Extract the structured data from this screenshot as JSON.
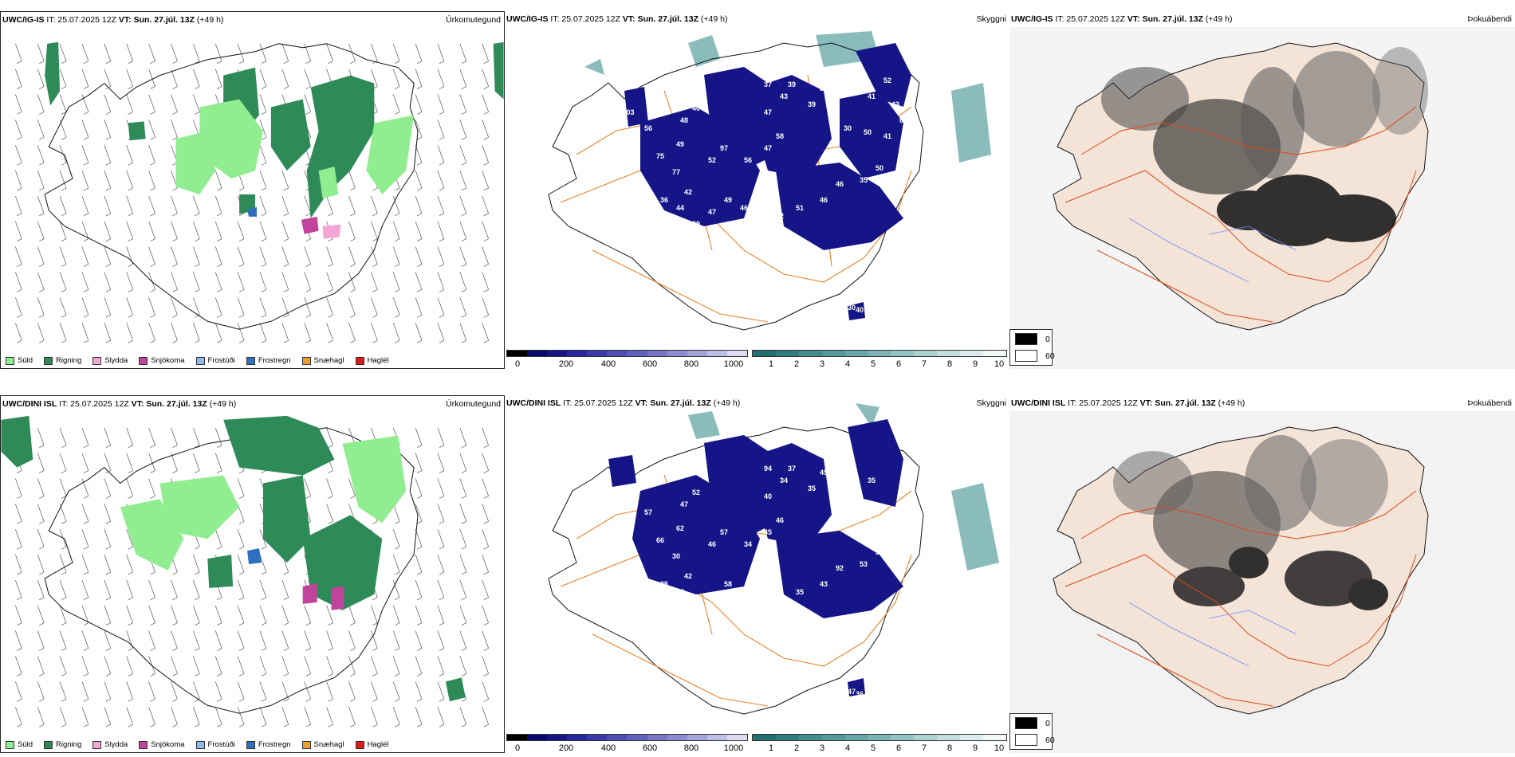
{
  "panels": [
    {
      "row": "top",
      "model": "UWC/IG-IS",
      "meta": " IT: 25.07.2025 12Z ",
      "vt_prefix": "VT:",
      "vt": " Sun. 27.júl. 13Z",
      "lead": " (+49 h)",
      "precip_title": "Úrkomutegund",
      "vis_title": "Skyggni",
      "fog_title": "Þokuábendi"
    },
    {
      "row": "bottom",
      "model": "UWC/DINI ISL",
      "meta": " IT: 25.07.2025 12Z ",
      "vt_prefix": "VT:",
      "vt": " Sun. 27.júl. 13Z",
      "lead": " (+49 h)",
      "precip_title": "Úrkomutegund",
      "vis_title": "Skyggni",
      "fog_title": "Þokuábendi"
    }
  ],
  "precip_legend": [
    {
      "label": "Súld",
      "color": "#90ee90"
    },
    {
      "label": "Rigning",
      "color": "#2e8b57"
    },
    {
      "label": "Slydda",
      "color": "#f4a6d7"
    },
    {
      "label": "Snjókoma",
      "color": "#c0449c"
    },
    {
      "label": "Frostúði",
      "color": "#8fb9ee"
    },
    {
      "label": "Frostregn",
      "color": "#2f6fc0"
    },
    {
      "label": "Snæhagl",
      "color": "#f0a030"
    },
    {
      "label": "Haglél",
      "color": "#e01818"
    }
  ],
  "ceiling_bar": {
    "unit": "m",
    "ticks": [
      "0",
      "200",
      "400",
      "600",
      "800",
      "1000"
    ],
    "colors": [
      "#000000",
      "#0a0a6e",
      "#151588",
      "#2727a0",
      "#3a3aaa",
      "#4d4db5",
      "#6060bd",
      "#7676c7",
      "#8c8cd1",
      "#a3a3dc",
      "#bebee8",
      "#dcdcf3"
    ]
  },
  "visibility_bar": {
    "unit": "km",
    "ticks": [
      "1",
      "2",
      "3",
      "4",
      "5",
      "6",
      "7",
      "8",
      "9",
      "10"
    ],
    "colors": [
      "#236e6e",
      "#317c7c",
      "#438c8c",
      "#559999",
      "#68a7a7",
      "#7db5b5",
      "#93c3c3",
      "#abd1d1",
      "#c3dfdf",
      "#dcecec",
      "#f2f8f8"
    ]
  },
  "fog_legend": {
    "items": [
      {
        "label": "0",
        "color": "#000000"
      },
      {
        "label": "60",
        "color": "#ffffff"
      }
    ]
  },
  "ceiling_labels_top": [
    "103",
    "56",
    "75",
    "48",
    "40",
    "49",
    "77",
    "42",
    "52",
    "97",
    "56",
    "47",
    "58",
    "47",
    "43",
    "37",
    "39",
    "38",
    "39",
    "38",
    "30",
    "50",
    "41",
    "50",
    "35",
    "46",
    "46",
    "51",
    "72",
    "78",
    "46",
    "49",
    "47",
    "39",
    "44",
    "36",
    "35",
    "30",
    "40",
    "41",
    "52",
    "43",
    "66",
    "76"
  ],
  "ceiling_labels_bottom": [
    "107",
    "57",
    "66",
    "47",
    "52",
    "62",
    "30",
    "42",
    "46",
    "57",
    "34",
    "45",
    "46",
    "40",
    "34",
    "94",
    "37",
    "45",
    "35",
    "43",
    "68",
    "43",
    "46",
    "39",
    "53",
    "92",
    "43",
    "35",
    "66",
    "37",
    "35",
    "58",
    "59",
    "54",
    "45",
    "35",
    "33",
    "47",
    "36",
    "35"
  ]
}
